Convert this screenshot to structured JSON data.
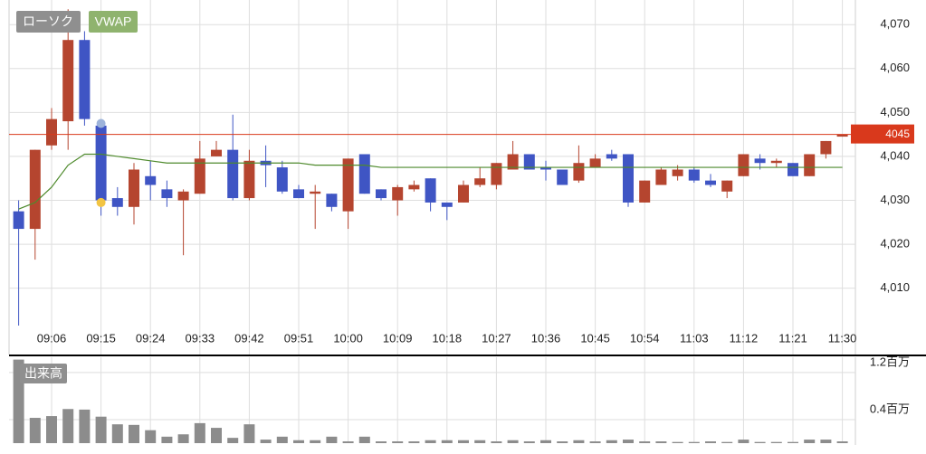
{
  "chart_data": [
    {
      "type": "candlestick",
      "categories": [
        null,
        null,
        "09:06",
        null,
        null,
        "09:15",
        null,
        null,
        "09:24",
        null,
        null,
        "09:33",
        null,
        null,
        "09:42",
        null,
        null,
        "09:51",
        null,
        null,
        "10:00",
        null,
        null,
        "10:09",
        null,
        null,
        "10:18",
        null,
        null,
        "10:27",
        null,
        null,
        "10:36",
        null,
        null,
        "10:45",
        null,
        null,
        "10:54",
        null,
        null,
        "11:03",
        null,
        null,
        "11:12",
        null,
        null,
        "11:21",
        null,
        null,
        "11:30"
      ],
      "series": [
        {
          "name": "ローソク",
          "color": "#8c8c8c",
          "up_color": "#b5452f",
          "down_color": "#3f55c4",
          "open": [
            4027.5,
            4023.5,
            4042.5,
            4048,
            4066.5,
            4047,
            4030.5,
            4028.5,
            4035.5,
            4032.5,
            4030,
            4031.5,
            4040,
            4041.5,
            4030.5,
            4039,
            4037.5,
            4032.5,
            4031.5,
            4031.5,
            4027.5,
            4040.5,
            4032.5,
            4030,
            4032.5,
            4035,
            4029.5,
            4029.5,
            4033.5,
            4033.5,
            4037,
            4040.5,
            4037.5,
            4037,
            4034.5,
            4037.5,
            4040.5,
            4040.5,
            4029.5,
            4033.5,
            4035.5,
            4037,
            4034.5,
            4032,
            4035.5,
            4039.5,
            4038.5,
            4038.5,
            4035.5,
            4040.5,
            4044.5
          ],
          "high": [
            4030,
            4041.5,
            4051,
            4073.5,
            4068.5,
            4048.5,
            4033,
            4038.5,
            4039,
            4034.5,
            4032.5,
            4043.5,
            4043.5,
            4049.5,
            4041.5,
            4042.5,
            4039,
            4033.5,
            4033.5,
            4031.5,
            4039.5,
            4040.5,
            4032.5,
            4033.5,
            4034.5,
            4035,
            4029.5,
            4034.5,
            4037.5,
            4038.5,
            4043.5,
            4040.5,
            4039,
            4037,
            4042.5,
            4040.5,
            4041.5,
            4040.5,
            4034.5,
            4037.5,
            4038,
            4037.5,
            4036,
            4034.5,
            4040.5,
            4040.5,
            4039.5,
            4038.5,
            4040.5,
            4043.5,
            4045
          ],
          "low": [
            4001.5,
            4016.5,
            4041.5,
            4041.5,
            4047,
            4026.5,
            4026.5,
            4024.5,
            4030,
            4028.5,
            4017.5,
            4031.5,
            4040,
            4030,
            4030,
            4033,
            4031.5,
            4030.5,
            4023.5,
            4027.5,
            4023.5,
            4031.5,
            4030,
            4026.5,
            4032,
            4027.5,
            4025.5,
            4029.5,
            4033,
            4032.5,
            4037,
            4037,
            4034.5,
            4033.5,
            4034,
            4037.5,
            4039,
            4028.5,
            4029.5,
            4033.5,
            4034.5,
            4034,
            4033,
            4030.5,
            4035.5,
            4037,
            4037.5,
            4035.5,
            4035.5,
            4039.5,
            4044.5
          ],
          "close": [
            4023.5,
            4041.5,
            4048.5,
            4066.5,
            4048.5,
            4030,
            4028.5,
            4037,
            4033.5,
            4030.5,
            4032,
            4039.5,
            4041.5,
            4030.5,
            4039,
            4038,
            4032,
            4030.5,
            4032,
            4028.5,
            4039.5,
            4031.5,
            4030.5,
            4033,
            4033.5,
            4029.5,
            4028.5,
            4033.5,
            4035,
            4038.5,
            4040.5,
            4037,
            4037,
            4033.5,
            4038.5,
            4039.5,
            4039.5,
            4029.5,
            4034.5,
            4037,
            4037,
            4034.5,
            4033.5,
            4034.5,
            4040.5,
            4038.5,
            4039,
            4035.5,
            4040.5,
            4043.5,
            4045
          ]
        },
        {
          "name": "VWAP",
          "color": "#4e8a2c",
          "values": [
            4028,
            4029.5,
            4033,
            4038,
            4040.5,
            4040.5,
            4040,
            4039.5,
            4039,
            4038.5,
            4038.5,
            4038.5,
            4038.5,
            4038.5,
            4038.5,
            4038.5,
            4038.5,
            4038.5,
            4038,
            4038,
            4038,
            4038,
            4037.5,
            4037.5,
            4037.5,
            4037.5,
            4037.5,
            4037.5,
            4037.5,
            4037.5,
            4037.5,
            4037.5,
            4037.5,
            4037.5,
            4037.5,
            4037.5,
            4037.5,
            4037.5,
            4037.5,
            4037.5,
            4037.5,
            4037.5,
            4037.5,
            4037.5,
            4037.5,
            4037.5,
            4037.5,
            4037.5,
            4037.5,
            4037.5,
            4037.5
          ]
        }
      ],
      "markers": [
        {
          "index": 5,
          "value": 4047.5,
          "color": "#9db3da"
        },
        {
          "index": 5,
          "value": 4029.5,
          "color": "#f2c443"
        }
      ],
      "price_line": {
        "value": 4045,
        "color": "#d9391c"
      },
      "ylim": [
        3994.9,
        4075.6
      ],
      "yticks": [
        {
          "value": 4010,
          "label": "4,010"
        },
        {
          "value": 4020,
          "label": "4,020"
        },
        {
          "value": 4030,
          "label": "4,030"
        },
        {
          "value": 4040,
          "label": "4,040"
        },
        {
          "value": 4050,
          "label": "4,050"
        },
        {
          "value": 4060,
          "label": "4,060"
        },
        {
          "value": 4070,
          "label": "4,070"
        }
      ],
      "grid": true
    },
    {
      "type": "bar",
      "title": "出来高",
      "color": "#8c8c8c",
      "values": [
        1420000,
        430000,
        460000,
        580000,
        570000,
        450000,
        320000,
        310000,
        220000,
        110000,
        150000,
        340000,
        260000,
        90000,
        320000,
        60000,
        110000,
        50000,
        50000,
        110000,
        30000,
        110000,
        30000,
        30000,
        30000,
        50000,
        50000,
        50000,
        50000,
        30000,
        50000,
        30000,
        50000,
        30000,
        50000,
        30000,
        50000,
        60000,
        30000,
        30000,
        20000,
        20000,
        30000,
        20000,
        60000,
        20000,
        20000,
        20000,
        60000,
        60000,
        30000
      ],
      "ylim": [
        0,
        1460000
      ],
      "yticks": [
        {
          "value": 400000,
          "label": "0.4百万"
        },
        {
          "value": 1200000,
          "label": "1.2百万"
        }
      ],
      "grid": true
    }
  ]
}
